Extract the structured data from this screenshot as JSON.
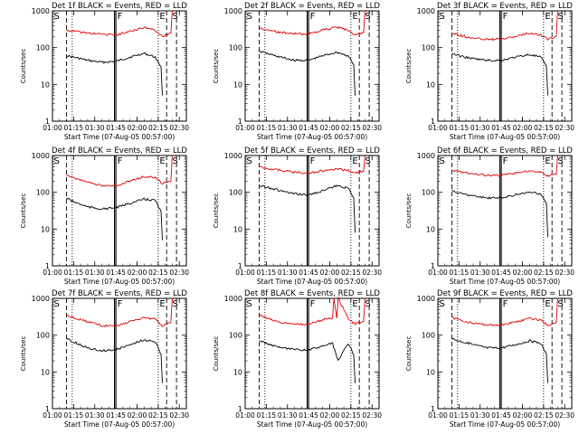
{
  "figure": {
    "start_time_label": "Start Time (07-Aug-05 00:57:00)",
    "colors": {
      "events": "#000000",
      "lld": "#e00000",
      "axes": "#000000"
    }
  },
  "chart_data": [
    {
      "type": "line",
      "title": "Det 1f BLACK = Events, RED = LLD",
      "xlabel": "Start Time (07-Aug-05 00:57:00)",
      "ylabel": "Counts/sec",
      "yscale": "log",
      "ylim": [
        1,
        1000
      ],
      "x_ticks": [
        "01:00",
        "01:15",
        "01:30",
        "01:45",
        "02:00",
        "02:15",
        "02:30"
      ],
      "y_ticks": [
        "1",
        "10",
        "100",
        "1000"
      ],
      "markers": [
        "S",
        "F",
        "E",
        "S"
      ],
      "series": [
        {
          "name": "Events",
          "color": "#000000",
          "x": [
            "01:10",
            "01:15",
            "01:25",
            "01:35",
            "01:45",
            "01:55",
            "02:05",
            "02:13",
            "02:17",
            "02:18"
          ],
          "values": [
            60,
            55,
            45,
            40,
            42,
            55,
            70,
            55,
            30,
            5
          ]
        },
        {
          "name": "LLD",
          "color": "#e00000",
          "x": [
            "01:10",
            "01:15",
            "01:25",
            "01:35",
            "01:45",
            "01:55",
            "02:05",
            "02:13",
            "02:18",
            "02:24",
            "02:25"
          ],
          "values": [
            300,
            280,
            250,
            230,
            220,
            280,
            350,
            300,
            200,
            250,
            1000
          ]
        }
      ]
    },
    {
      "type": "line",
      "title": "Det 2f BLACK = Events, RED = LLD",
      "xlabel": "Start Time (07-Aug-05 00:57:00)",
      "ylabel": "Counts/sec",
      "yscale": "log",
      "ylim": [
        1,
        1000
      ],
      "x_ticks": [
        "01:00",
        "01:15",
        "01:30",
        "01:45",
        "02:00",
        "02:15",
        "02:30"
      ],
      "y_ticks": [
        "1",
        "10",
        "100",
        "1000"
      ],
      "markers": [
        "S",
        "F",
        "E",
        "S"
      ],
      "series": [
        {
          "name": "Events",
          "color": "#000000",
          "x": [
            "01:10",
            "01:15",
            "01:25",
            "01:35",
            "01:45",
            "01:55",
            "02:05",
            "02:13",
            "02:17",
            "02:18"
          ],
          "values": [
            80,
            70,
            55,
            45,
            45,
            60,
            75,
            60,
            35,
            5
          ]
        },
        {
          "name": "LLD",
          "color": "#e00000",
          "x": [
            "01:10",
            "01:15",
            "01:25",
            "01:35",
            "01:45",
            "01:55",
            "02:05",
            "02:13",
            "02:18",
            "02:24",
            "02:25"
          ],
          "values": [
            350,
            300,
            260,
            240,
            230,
            300,
            360,
            300,
            220,
            260,
            1000
          ]
        }
      ]
    },
    {
      "type": "line",
      "title": "Det 3f BLACK = Events, RED = LLD",
      "xlabel": "Start Time (07-Aug-05 00:57:00)",
      "ylabel": "Counts/sec",
      "yscale": "log",
      "ylim": [
        1,
        1000
      ],
      "x_ticks": [
        "01:00",
        "01:15",
        "01:30",
        "01:45",
        "02:00",
        "02:15",
        "02:30"
      ],
      "y_ticks": [
        "1",
        "10",
        "100",
        "1000"
      ],
      "markers": [
        "S",
        "F",
        "E",
        "S"
      ],
      "series": [
        {
          "name": "Events",
          "color": "#000000",
          "x": [
            "01:10",
            "01:15",
            "01:25",
            "01:35",
            "01:45",
            "01:55",
            "02:05",
            "02:13",
            "02:17",
            "02:18"
          ],
          "values": [
            70,
            60,
            50,
            45,
            45,
            55,
            65,
            55,
            30,
            5
          ]
        },
        {
          "name": "LLD",
          "color": "#e00000",
          "x": [
            "01:10",
            "01:15",
            "01:25",
            "01:35",
            "01:45",
            "01:55",
            "02:05",
            "02:13",
            "02:18",
            "02:24",
            "02:25"
          ],
          "values": [
            250,
            220,
            180,
            170,
            170,
            200,
            250,
            220,
            170,
            200,
            1000
          ]
        }
      ]
    },
    {
      "type": "line",
      "title": "Det 4f BLACK = Events, RED = LLD",
      "xlabel": "Start Time (07-Aug-05 00:57:00)",
      "ylabel": "Counts/sec",
      "yscale": "log",
      "ylim": [
        1,
        1000
      ],
      "x_ticks": [
        "01:00",
        "01:15",
        "01:30",
        "01:45",
        "02:00",
        "02:15",
        "02:30"
      ],
      "y_ticks": [
        "1",
        "10",
        "100",
        "1000"
      ],
      "markers": [
        "S",
        "F",
        "E",
        "S"
      ],
      "series": [
        {
          "name": "Events",
          "color": "#000000",
          "x": [
            "01:10",
            "01:15",
            "01:25",
            "01:35",
            "01:45",
            "01:55",
            "02:05",
            "02:13",
            "02:17",
            "02:18"
          ],
          "values": [
            70,
            55,
            40,
            35,
            38,
            50,
            65,
            60,
            30,
            5
          ]
        },
        {
          "name": "LLD",
          "color": "#e00000",
          "x": [
            "01:10",
            "01:15",
            "01:25",
            "01:35",
            "01:45",
            "01:55",
            "02:05",
            "02:13",
            "02:18",
            "02:24",
            "02:25"
          ],
          "values": [
            300,
            250,
            190,
            150,
            150,
            200,
            270,
            250,
            170,
            200,
            1000
          ]
        }
      ]
    },
    {
      "type": "line",
      "title": "Det 5f BLACK = Events, RED = LLD",
      "xlabel": "Start Time (07-Aug-05 00:57:00)",
      "ylabel": "Counts/sec",
      "yscale": "log",
      "ylim": [
        1,
        1000
      ],
      "x_ticks": [
        "01:00",
        "01:15",
        "01:30",
        "01:45",
        "02:00",
        "02:15",
        "02:30"
      ],
      "y_ticks": [
        "1",
        "10",
        "100",
        "1000"
      ],
      "markers": [
        "S",
        "F",
        "E",
        "S"
      ],
      "series": [
        {
          "name": "Events",
          "color": "#000000",
          "x": [
            "01:10",
            "01:15",
            "01:25",
            "01:35",
            "01:45",
            "01:55",
            "02:05",
            "02:13",
            "02:17",
            "02:18"
          ],
          "values": [
            150,
            140,
            110,
            90,
            85,
            110,
            150,
            130,
            70,
            8
          ]
        },
        {
          "name": "LLD",
          "color": "#e00000",
          "x": [
            "01:10",
            "01:15",
            "01:25",
            "01:35",
            "01:45",
            "01:55",
            "02:05",
            "02:13",
            "02:18",
            "02:24",
            "02:25"
          ],
          "values": [
            500,
            450,
            400,
            350,
            340,
            380,
            420,
            400,
            330,
            380,
            1000
          ]
        }
      ]
    },
    {
      "type": "line",
      "title": "Det 6f BLACK = Events, RED = LLD",
      "xlabel": "Start Time (07-Aug-05 00:57:00)",
      "ylabel": "Counts/sec",
      "yscale": "log",
      "ylim": [
        1,
        1000
      ],
      "x_ticks": [
        "01:00",
        "01:15",
        "01:30",
        "01:45",
        "02:00",
        "02:15",
        "02:30"
      ],
      "y_ticks": [
        "1",
        "10",
        "100",
        "1000"
      ],
      "markers": [
        "S",
        "F",
        "E",
        "S"
      ],
      "series": [
        {
          "name": "Events",
          "color": "#000000",
          "x": [
            "01:10",
            "01:15",
            "01:25",
            "01:35",
            "01:45",
            "01:55",
            "02:05",
            "02:13",
            "02:17",
            "02:18"
          ],
          "values": [
            110,
            95,
            80,
            70,
            70,
            85,
            100,
            90,
            50,
            6
          ]
        },
        {
          "name": "LLD",
          "color": "#e00000",
          "x": [
            "01:10",
            "01:15",
            "01:25",
            "01:35",
            "01:45",
            "01:55",
            "02:05",
            "02:13",
            "02:18",
            "02:24",
            "02:25"
          ],
          "values": [
            400,
            360,
            320,
            290,
            290,
            330,
            380,
            360,
            280,
            320,
            1000
          ]
        }
      ]
    },
    {
      "type": "line",
      "title": "Det 7f BLACK = Events, RED = LLD",
      "xlabel": "Start Time (07-Aug-05 00:57:00)",
      "ylabel": "Counts/sec",
      "yscale": "log",
      "ylim": [
        1,
        1000
      ],
      "x_ticks": [
        "01:00",
        "01:15",
        "01:30",
        "01:45",
        "02:00",
        "02:15",
        "02:30"
      ],
      "y_ticks": [
        "1",
        "10",
        "100",
        "1000"
      ],
      "markers": [
        "S",
        "F",
        "E",
        "S"
      ],
      "series": [
        {
          "name": "Events",
          "color": "#000000",
          "x": [
            "01:10",
            "01:15",
            "01:25",
            "01:35",
            "01:45",
            "01:55",
            "02:05",
            "02:13",
            "02:17",
            "02:18"
          ],
          "values": [
            80,
            65,
            45,
            38,
            40,
            55,
            75,
            65,
            30,
            5
          ]
        },
        {
          "name": "LLD",
          "color": "#e00000",
          "x": [
            "01:10",
            "01:15",
            "01:25",
            "01:35",
            "01:45",
            "01:55",
            "02:05",
            "02:13",
            "02:18",
            "02:24",
            "02:25"
          ],
          "values": [
            350,
            300,
            230,
            180,
            180,
            230,
            300,
            270,
            180,
            220,
            1000
          ]
        }
      ]
    },
    {
      "type": "line",
      "title": "Det 8f BLACK = Events, RED = LLD",
      "xlabel": "Start Time (07-Aug-05 00:57:00)",
      "ylabel": "Counts/sec",
      "yscale": "log",
      "ylim": [
        1,
        1000
      ],
      "x_ticks": [
        "01:00",
        "01:15",
        "01:30",
        "01:45",
        "02:00",
        "02:15",
        "02:30"
      ],
      "y_ticks": [
        "1",
        "10",
        "100",
        "1000"
      ],
      "markers": [
        "S",
        "F",
        "E",
        "S"
      ],
      "series": [
        {
          "name": "Events",
          "color": "#000000",
          "x": [
            "01:10",
            "01:15",
            "01:25",
            "01:35",
            "01:45",
            "01:55",
            "02:02",
            "02:06",
            "02:13",
            "02:17",
            "02:18"
          ],
          "values": [
            70,
            60,
            45,
            40,
            40,
            50,
            60,
            20,
            60,
            30,
            5
          ]
        },
        {
          "name": "LLD",
          "color": "#e00000",
          "x": [
            "01:10",
            "01:15",
            "01:25",
            "01:35",
            "01:45",
            "01:55",
            "02:02",
            "02:03",
            "02:05",
            "02:06",
            "02:13",
            "02:18",
            "02:24",
            "02:25"
          ],
          "values": [
            350,
            300,
            220,
            200,
            200,
            260,
            300,
            1000,
            300,
            1000,
            280,
            200,
            240,
            1000
          ]
        }
      ]
    },
    {
      "type": "line",
      "title": "Det 9f BLACK = Events, RED = LLD",
      "xlabel": "Start Time (07-Aug-05 00:57:00)",
      "ylabel": "Counts/sec",
      "yscale": "log",
      "ylim": [
        1,
        1000
      ],
      "x_ticks": [
        "01:00",
        "01:15",
        "01:30",
        "01:45",
        "02:00",
        "02:15",
        "02:30"
      ],
      "y_ticks": [
        "1",
        "10",
        "100",
        "1000"
      ],
      "markers": [
        "S",
        "F",
        "E",
        "S"
      ],
      "series": [
        {
          "name": "Events",
          "color": "#000000",
          "x": [
            "01:10",
            "01:15",
            "01:25",
            "01:35",
            "01:45",
            "01:55",
            "02:05",
            "02:13",
            "02:17",
            "02:18"
          ],
          "values": [
            80,
            70,
            55,
            45,
            45,
            55,
            70,
            60,
            30,
            5
          ]
        },
        {
          "name": "LLD",
          "color": "#e00000",
          "x": [
            "01:10",
            "01:15",
            "01:25",
            "01:35",
            "01:45",
            "01:55",
            "02:05",
            "02:13",
            "02:18",
            "02:24",
            "02:25"
          ],
          "values": [
            300,
            260,
            210,
            190,
            190,
            230,
            280,
            260,
            180,
            220,
            1000
          ]
        }
      ]
    }
  ]
}
